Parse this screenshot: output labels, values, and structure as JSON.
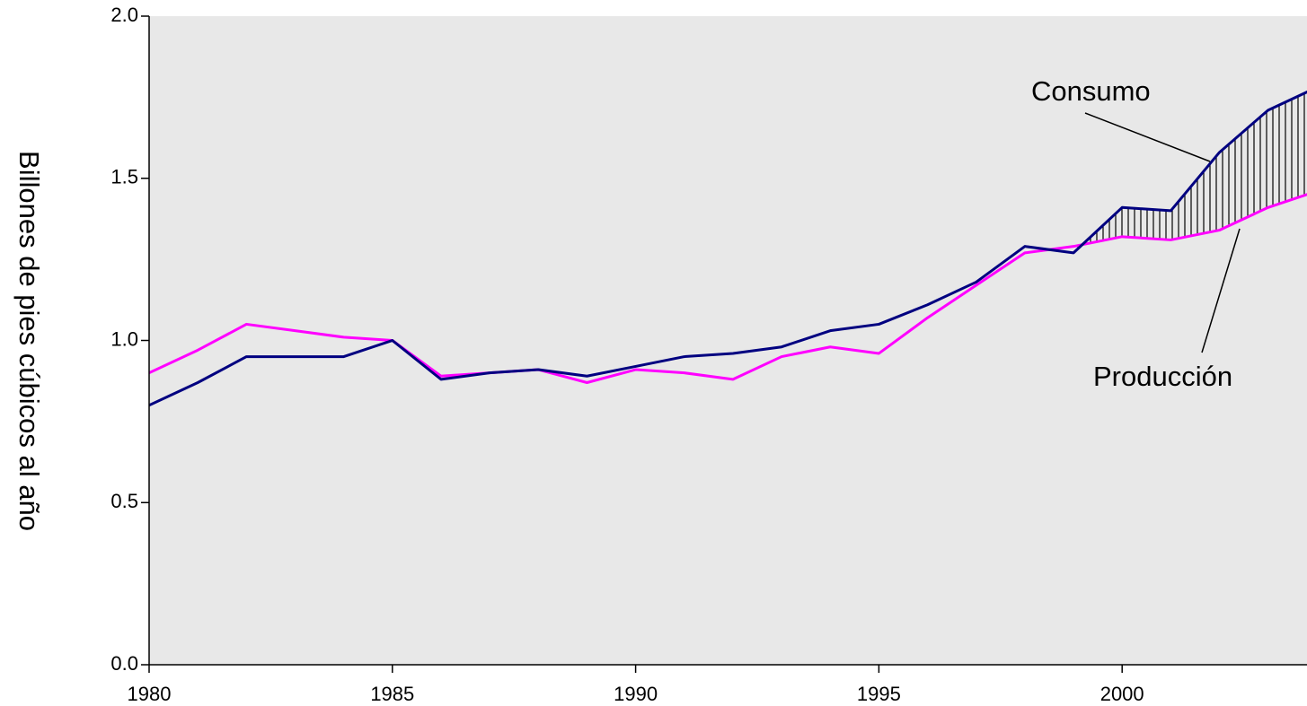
{
  "chart_data": {
    "type": "line",
    "ylabel": "Billones de pies cúbicos al año",
    "x": [
      1980,
      1981,
      1982,
      1983,
      1984,
      1985,
      1986,
      1987,
      1988,
      1989,
      1990,
      1991,
      1992,
      1993,
      1994,
      1995,
      1996,
      1997,
      1998,
      1999,
      2000,
      2001,
      2002,
      2003,
      2004
    ],
    "series": [
      {
        "name": "Consumo",
        "color": "#000080",
        "values": [
          0.8,
          0.87,
          0.95,
          0.95,
          0.95,
          1.0,
          0.88,
          0.9,
          0.91,
          0.89,
          0.92,
          0.95,
          0.96,
          0.98,
          1.03,
          1.05,
          1.11,
          1.18,
          1.29,
          1.27,
          1.41,
          1.4,
          1.58,
          1.71,
          1.78
        ]
      },
      {
        "name": "Producción",
        "color": "#ff00ff",
        "values": [
          0.9,
          0.97,
          1.05,
          1.03,
          1.01,
          1.0,
          0.89,
          0.9,
          0.91,
          0.87,
          0.91,
          0.9,
          0.88,
          0.95,
          0.98,
          0.96,
          1.07,
          1.17,
          1.27,
          1.29,
          1.32,
          1.31,
          1.34,
          1.41,
          1.46
        ]
      }
    ],
    "xlim": [
      1980,
      2003.8
    ],
    "xticks": [
      1980,
      1985,
      1990,
      1995,
      2000
    ],
    "ylim": [
      0,
      2
    ],
    "yticks": [
      {
        "value": 0,
        "label": "0.0"
      },
      0.5,
      {
        "value": 1,
        "label": "1.0"
      },
      1.5,
      {
        "value": 2,
        "label": "2.0"
      }
    ],
    "grid": false,
    "plot_background": "#e8e8e8"
  }
}
